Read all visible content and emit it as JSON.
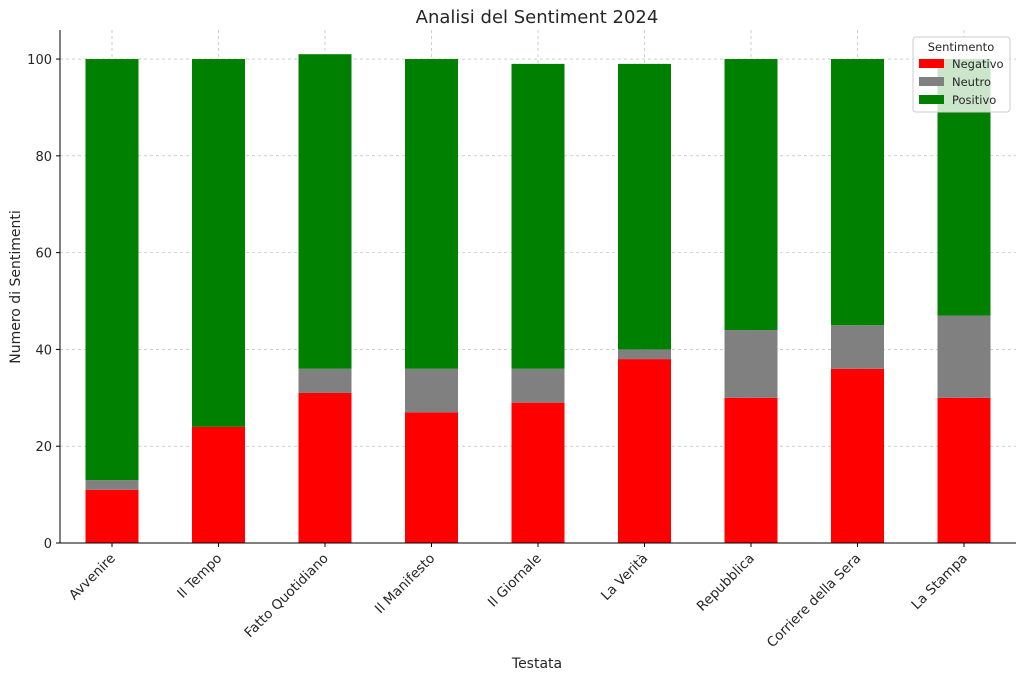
{
  "chart_data": {
    "type": "bar",
    "stacked": true,
    "title": "Analisi del Sentiment 2024",
    "xlabel": "Testata",
    "ylabel": "Numero di Sentimenti",
    "ylim": [
      0,
      106
    ],
    "yticks": [
      0,
      20,
      40,
      60,
      80,
      100
    ],
    "grid": true,
    "legend": {
      "title": "Sentimento",
      "position": "top-right"
    },
    "categories": [
      "Avvenire",
      "Il Tempo",
      "Fatto Quotidiano",
      "Il Manifesto",
      "Il Giornale",
      "La Verità",
      "Repubblica",
      "Corriere della Sera",
      "La Stampa"
    ],
    "series": [
      {
        "name": "Negativo",
        "color": "#ff0000",
        "values": [
          11,
          24,
          31,
          27,
          29,
          38,
          30,
          36,
          30
        ]
      },
      {
        "name": "Neutro",
        "color": "#808080",
        "values": [
          2,
          0,
          5,
          9,
          7,
          2,
          14,
          9,
          17
        ]
      },
      {
        "name": "Positivo",
        "color": "#008000",
        "values": [
          87,
          76,
          65,
          64,
          63,
          59,
          56,
          55,
          53
        ]
      }
    ]
  }
}
